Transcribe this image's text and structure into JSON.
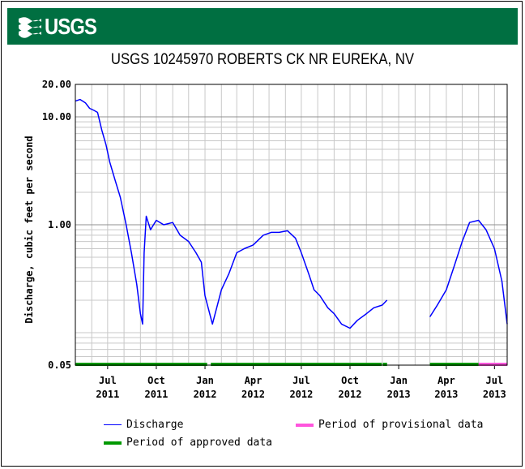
{
  "header": {
    "logo_text": "USGS",
    "brand_color": "#006f41"
  },
  "chart_data": {
    "type": "line",
    "title": "USGS 10245970 ROBERTS CK NR EUREKA, NV",
    "xlabel": "",
    "ylabel": "Discharge, cubic feet per second",
    "y_scale": "log",
    "ylim": [
      0.05,
      20.0
    ],
    "xlim": [
      "2011-05-01",
      "2013-07-25"
    ],
    "y_ticks": [
      {
        "value": 0.05,
        "label": "0.05"
      },
      {
        "value": 1.0,
        "label": "1.00"
      },
      {
        "value": 10.0,
        "label": "10.00"
      },
      {
        "value": 20.0,
        "label": "20.00"
      }
    ],
    "x_ticks": [
      {
        "date": "2011-07-01",
        "month": "Jul",
        "year": "2011"
      },
      {
        "date": "2011-10-01",
        "month": "Oct",
        "year": "2011"
      },
      {
        "date": "2012-01-01",
        "month": "Jan",
        "year": "2012"
      },
      {
        "date": "2012-04-01",
        "month": "Apr",
        "year": "2012"
      },
      {
        "date": "2012-07-01",
        "month": "Jul",
        "year": "2012"
      },
      {
        "date": "2012-10-01",
        "month": "Oct",
        "year": "2012"
      },
      {
        "date": "2013-01-01",
        "month": "Jan",
        "year": "2013"
      },
      {
        "date": "2013-04-01",
        "month": "Apr",
        "year": "2013"
      },
      {
        "date": "2013-07-01",
        "month": "Jul",
        "year": "2013"
      }
    ],
    "grid": true,
    "legend_position": "bottom",
    "series": [
      {
        "name": "Discharge",
        "color": "#0000ff",
        "segments": [
          {
            "x": [
              "2011-05-01",
              "2011-05-10",
              "2011-05-20",
              "2011-05-28",
              "2011-06-05",
              "2011-06-12",
              "2011-06-20",
              "2011-06-28",
              "2011-07-05",
              "2011-07-15",
              "2011-07-25",
              "2011-08-05",
              "2011-08-15",
              "2011-08-25",
              "2011-09-01",
              "2011-09-05",
              "2011-09-08",
              "2011-09-12",
              "2011-09-20",
              "2011-10-01",
              "2011-10-15",
              "2011-11-01",
              "2011-11-15",
              "2011-12-01",
              "2011-12-15",
              "2011-12-25",
              "2012-01-01",
              "2012-01-15",
              "2012-02-01",
              "2012-02-15",
              "2012-03-01",
              "2012-03-15",
              "2012-04-01",
              "2012-04-20",
              "2012-05-05",
              "2012-05-20",
              "2012-06-05",
              "2012-06-20",
              "2012-07-01",
              "2012-07-15",
              "2012-07-25",
              "2012-08-05",
              "2012-08-20",
              "2012-09-01",
              "2012-09-15",
              "2012-10-01",
              "2012-10-15",
              "2012-11-01",
              "2012-11-15",
              "2012-12-01",
              "2012-12-10"
            ],
            "y": [
              14.0,
              14.5,
              13.5,
              12.0,
              11.5,
              11.0,
              7.5,
              5.5,
              3.8,
              2.6,
              1.8,
              1.0,
              0.55,
              0.28,
              0.15,
              0.12,
              0.55,
              1.2,
              0.9,
              1.1,
              1.0,
              1.05,
              0.8,
              0.7,
              0.55,
              0.45,
              0.22,
              0.12,
              0.25,
              0.35,
              0.55,
              0.6,
              0.65,
              0.8,
              0.85,
              0.85,
              0.88,
              0.75,
              0.55,
              0.35,
              0.25,
              0.22,
              0.17,
              0.15,
              0.12,
              0.11,
              0.13,
              0.15,
              0.17,
              0.18,
              0.2
            ]
          },
          {
            "x": [
              "2013-03-01",
              "2013-03-15",
              "2013-04-01",
              "2013-04-15",
              "2013-05-01",
              "2013-05-15",
              "2013-06-01",
              "2013-06-15",
              "2013-07-01",
              "2013-07-15",
              "2013-07-25"
            ],
            "y": [
              0.14,
              0.18,
              0.25,
              0.4,
              0.7,
              1.05,
              1.1,
              0.9,
              0.6,
              0.3,
              0.12
            ]
          }
        ]
      },
      {
        "name": "Period of approved data",
        "color": "#009900",
        "periods": [
          [
            "2011-05-01",
            "2012-01-05"
          ],
          [
            "2012-01-12",
            "2012-11-30"
          ],
          [
            "2012-12-02",
            "2012-12-10"
          ],
          [
            "2013-03-01",
            "2013-06-01"
          ]
        ]
      },
      {
        "name": "Period of provisional data",
        "color": "#ff55dd",
        "periods": [
          [
            "2013-06-01",
            "2013-07-25"
          ]
        ]
      }
    ]
  }
}
